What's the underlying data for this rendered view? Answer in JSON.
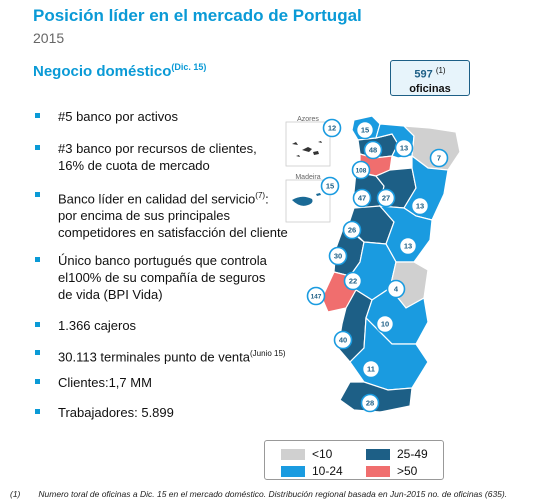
{
  "header": {
    "title": "Posición líder en el mercado de Portugal",
    "year": "2015"
  },
  "section": {
    "title": "Negocio doméstico",
    "note": "(Dic. 15)"
  },
  "branches": {
    "count": "597",
    "note": "(1)",
    "label": "oficinas"
  },
  "bullets": [
    {
      "text": "#5 banco por activos"
    },
    {
      "line1": "#3 banco por recursos de clientes,",
      "line2": "16% de cuota de mercado"
    },
    {
      "line1": "Banco líder en calidad del servicio",
      "sup": "(7)",
      "line1b": ":",
      "line2": "por encima de sus principales",
      "line3": "competidores en satisfacción del cliente"
    },
    {
      "line1": "Único banco portugués que controla",
      "line2": "el100%  de su compañía de seguros",
      "line3": "de vida (BPI Vida)"
    },
    {
      "text": "1.366 cajeros"
    },
    {
      "text": "30.113  terminales punto de venta",
      "sup": "(Junio 15)"
    },
    {
      "text": "Clientes:1,7 MM"
    },
    {
      "text": "Trabajadores:  5.899"
    }
  ],
  "map": {
    "islands": {
      "azores": "Azores",
      "madeira": "Madeira"
    },
    "regions": [
      {
        "id": "azores",
        "value": "12",
        "color": "#ffffff"
      },
      {
        "id": "madeira",
        "value": "15",
        "color": "#ffffff"
      },
      {
        "id": "viana",
        "value": "15",
        "color": "#1a9be0"
      },
      {
        "id": "braga",
        "value": "48",
        "color": "#1d5f86"
      },
      {
        "id": "vila-real",
        "value": "13",
        "color": "#1a9be0"
      },
      {
        "id": "braganca",
        "value": "7",
        "color": "#d0d0d0"
      },
      {
        "id": "porto",
        "value": "108",
        "color": "#f06e6e"
      },
      {
        "id": "aveiro",
        "value": "47",
        "color": "#1d5f86"
      },
      {
        "id": "viseu",
        "value": "27",
        "color": "#1d5f86"
      },
      {
        "id": "guarda",
        "value": "13",
        "color": "#1a9be0"
      },
      {
        "id": "coimbra",
        "value": "26",
        "color": "#1d5f86"
      },
      {
        "id": "castelo-branco",
        "value": "13",
        "color": "#1a9be0"
      },
      {
        "id": "leiria",
        "value": "30",
        "color": "#1d5f86"
      },
      {
        "id": "santarem",
        "value": "22",
        "color": "#1a9be0"
      },
      {
        "id": "portalegre",
        "value": "4",
        "color": "#d0d0d0"
      },
      {
        "id": "lisboa",
        "value": "147",
        "color": "#f06e6e"
      },
      {
        "id": "evora",
        "value": "10",
        "color": "#1a9be0"
      },
      {
        "id": "setubal",
        "value": "40",
        "color": "#1d5f86"
      },
      {
        "id": "beja",
        "value": "11",
        "color": "#1a9be0"
      },
      {
        "id": "faro",
        "value": "28",
        "color": "#1d5f86"
      }
    ]
  },
  "legend": [
    {
      "label": "<10",
      "color": "#d0d0d0"
    },
    {
      "label": "25-49",
      "color": "#1d5f86"
    },
    {
      "label": "10-24",
      "color": "#1a9be0"
    },
    {
      "label": ">50",
      "color": "#f06e6e"
    }
  ],
  "footnote": {
    "num": "(1)",
    "text": "Numero toral de oficinas a Dic. 15 en el mercado doméstico. Distribución regional basada en Jun-2015  no. de oficinas (635)."
  }
}
